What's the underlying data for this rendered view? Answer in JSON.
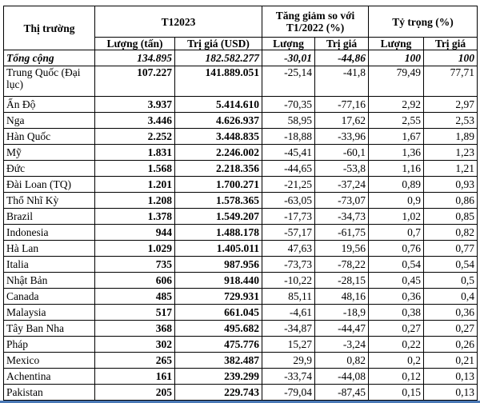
{
  "header": {
    "market": "Thị trường",
    "period": "T12023",
    "change": "Tăng giảm so với T1/2022 (%)",
    "share": "Tỷ trọng (%)",
    "volume_tons": "Lượng (tấn)",
    "value_usd": "Trị giá (USD)",
    "volume": "Lượng",
    "value": "Trị giá"
  },
  "total": {
    "name": "Tổng cộng",
    "qty": "134.895",
    "val": "182.582.277",
    "chg_q": "-30,01",
    "chg_v": "-44,86",
    "sh_q": "100",
    "sh_v": "100"
  },
  "rows": [
    {
      "name": "Trung Quốc (Đại lục)",
      "qty": "107.227",
      "val": "141.889.051",
      "chg_q": "-25,14",
      "chg_v": "-41,8",
      "sh_q": "79,49",
      "sh_v": "77,71"
    },
    {
      "name": "Ấn Độ",
      "qty": "3.937",
      "val": "5.414.610",
      "chg_q": "-70,35",
      "chg_v": "-77,16",
      "sh_q": "2,92",
      "sh_v": "2,97"
    },
    {
      "name": "Nga",
      "qty": "3.446",
      "val": "4.626.937",
      "chg_q": "58,95",
      "chg_v": "17,62",
      "sh_q": "2,55",
      "sh_v": "2,53"
    },
    {
      "name": "Hàn Quốc",
      "qty": "2.252",
      "val": "3.448.835",
      "chg_q": "-18,88",
      "chg_v": "-33,96",
      "sh_q": "1,67",
      "sh_v": "1,89"
    },
    {
      "name": "Mỹ",
      "qty": "1.831",
      "val": "2.246.002",
      "chg_q": "-45,41",
      "chg_v": "-60,1",
      "sh_q": "1,36",
      "sh_v": "1,23"
    },
    {
      "name": "Đức",
      "qty": "1.568",
      "val": "2.218.356",
      "chg_q": "-44,65",
      "chg_v": "-53,8",
      "sh_q": "1,16",
      "sh_v": "1,21"
    },
    {
      "name": "Đài Loan (TQ)",
      "qty": "1.201",
      "val": "1.700.271",
      "chg_q": "-21,25",
      "chg_v": "-37,24",
      "sh_q": "0,89",
      "sh_v": "0,93"
    },
    {
      "name": "Thổ Nhĩ Kỳ",
      "qty": "1.208",
      "val": "1.578.365",
      "chg_q": "-63,05",
      "chg_v": "-73,07",
      "sh_q": "0,9",
      "sh_v": "0,86"
    },
    {
      "name": "Brazil",
      "qty": "1.378",
      "val": "1.549.207",
      "chg_q": "-17,73",
      "chg_v": "-34,73",
      "sh_q": "1,02",
      "sh_v": "0,85"
    },
    {
      "name": "Indonesia",
      "qty": "944",
      "val": "1.488.178",
      "chg_q": "-57,17",
      "chg_v": "-61,75",
      "sh_q": "0,7",
      "sh_v": "0,82"
    },
    {
      "name": "Hà Lan",
      "qty": "1.029",
      "val": "1.405.011",
      "chg_q": "47,63",
      "chg_v": "19,56",
      "sh_q": "0,76",
      "sh_v": "0,77"
    },
    {
      "name": "Italia",
      "qty": "735",
      "val": "987.956",
      "chg_q": "-73,73",
      "chg_v": "-78,22",
      "sh_q": "0,54",
      "sh_v": "0,54"
    },
    {
      "name": "Nhật Bản",
      "qty": "606",
      "val": "918.440",
      "chg_q": "-10,22",
      "chg_v": "-28,15",
      "sh_q": "0,45",
      "sh_v": "0,5"
    },
    {
      "name": "Canada",
      "qty": "485",
      "val": "729.931",
      "chg_q": "85,11",
      "chg_v": "48,16",
      "sh_q": "0,36",
      "sh_v": "0,4"
    },
    {
      "name": "Malaysia",
      "qty": "517",
      "val": "661.045",
      "chg_q": "-4,61",
      "chg_v": "-18,9",
      "sh_q": "0,38",
      "sh_v": "0,36"
    },
    {
      "name": "Tây Ban Nha",
      "qty": "368",
      "val": "495.682",
      "chg_q": "-34,87",
      "chg_v": "-44,47",
      "sh_q": "0,27",
      "sh_v": "0,27"
    },
    {
      "name": "Pháp",
      "qty": "302",
      "val": "475.776",
      "chg_q": "15,27",
      "chg_v": "-3,24",
      "sh_q": "0,22",
      "sh_v": "0,26"
    },
    {
      "name": "Mexico",
      "qty": "265",
      "val": "382.487",
      "chg_q": "29,9",
      "chg_v": "0,82",
      "sh_q": "0,2",
      "sh_v": "0,21"
    },
    {
      "name": "Achentina",
      "qty": "161",
      "val": "239.299",
      "chg_q": "-33,74",
      "chg_v": "-44,08",
      "sh_q": "0,12",
      "sh_v": "0,13"
    },
    {
      "name": "Pakistan",
      "qty": "205",
      "val": "229.743",
      "chg_q": "-79,04",
      "chg_v": "-87,45",
      "sh_q": "0,15",
      "sh_v": "0,13"
    }
  ]
}
